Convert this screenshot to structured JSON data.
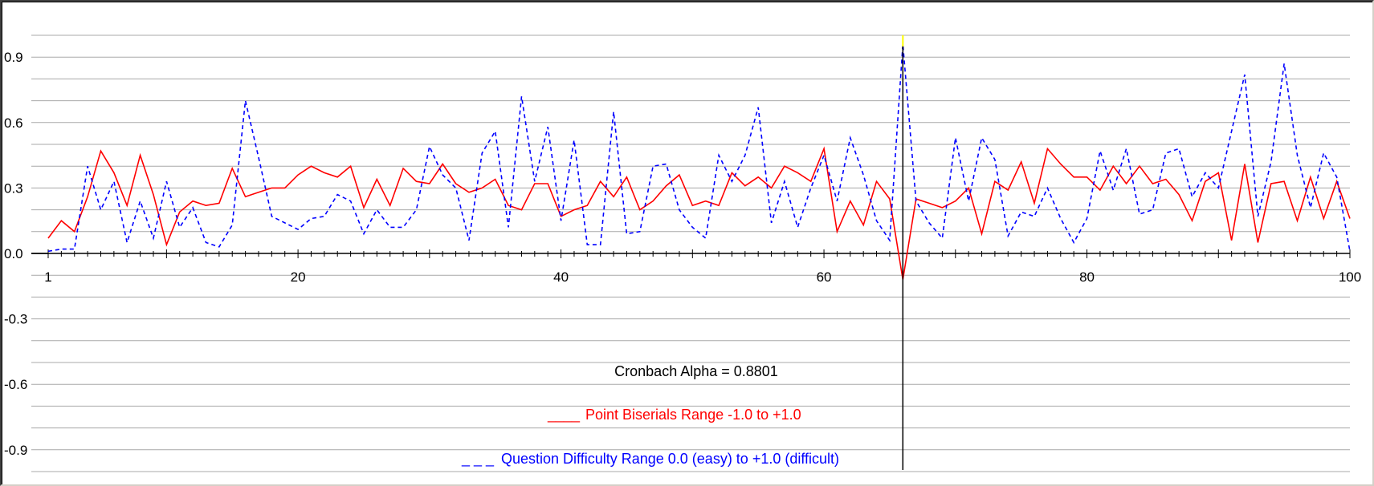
{
  "chart_data": {
    "type": "line",
    "title": "",
    "xlabel": "",
    "ylabel": "",
    "xlim": [
      1,
      100
    ],
    "ylim": [
      -1.0,
      1.0
    ],
    "x_ticks": [
      "1",
      "20",
      "40",
      "60",
      "80",
      "100"
    ],
    "y_ticks": [
      "0.9",
      "0.6",
      "0.3",
      "0.0",
      "-0.3",
      "-0.6",
      "-0.9"
    ],
    "grid": true,
    "cursor_x": 66,
    "annotations": {
      "cronbach": "Cronbach Alpha = 0.8801",
      "series1_marker": "____",
      "series1_legend": "Point Biserials Range -1.0 to +1.0",
      "series2_marker": "_ _ _",
      "series2_legend": "Question Difficulty Range 0.0 (easy) to +1.0 (difficult)"
    },
    "series": [
      {
        "name": "Point Biserials Range -1.0 to +1.0",
        "color": "#ff0000",
        "style": "solid",
        "values": [
          0.07,
          0.15,
          0.1,
          0.26,
          0.47,
          0.37,
          0.22,
          0.45,
          0.27,
          0.04,
          0.19,
          0.24,
          0.22,
          0.23,
          0.39,
          0.26,
          0.28,
          0.3,
          0.3,
          0.36,
          0.4,
          0.37,
          0.35,
          0.4,
          0.21,
          0.34,
          0.22,
          0.39,
          0.33,
          0.32,
          0.41,
          0.32,
          0.28,
          0.3,
          0.34,
          0.22,
          0.2,
          0.32,
          0.32,
          0.17,
          0.2,
          0.22,
          0.33,
          0.26,
          0.35,
          0.2,
          0.24,
          0.31,
          0.36,
          0.22,
          0.24,
          0.22,
          0.37,
          0.31,
          0.35,
          0.3,
          0.4,
          0.37,
          0.33,
          0.48,
          0.1,
          0.24,
          0.13,
          0.33,
          0.25,
          -0.12,
          0.25,
          0.23,
          0.21,
          0.24,
          0.3,
          0.09,
          0.33,
          0.29,
          0.42,
          0.23,
          0.48,
          0.41,
          0.35,
          0.35,
          0.29,
          0.4,
          0.32,
          0.4,
          0.32,
          0.34,
          0.27,
          0.15,
          0.33,
          0.37,
          0.06,
          0.41,
          0.05,
          0.32,
          0.33,
          0.15,
          0.35,
          0.16,
          0.33,
          0.16
        ]
      },
      {
        "name": "Question Difficulty Range 0.0 (easy) to +1.0 (difficult)",
        "color": "#0000ff",
        "style": "dashed",
        "values": [
          0.01,
          0.02,
          0.02,
          0.4,
          0.2,
          0.33,
          0.05,
          0.24,
          0.07,
          0.33,
          0.12,
          0.21,
          0.05,
          0.03,
          0.13,
          0.7,
          0.44,
          0.17,
          0.14,
          0.11,
          0.16,
          0.17,
          0.27,
          0.24,
          0.09,
          0.2,
          0.12,
          0.12,
          0.2,
          0.49,
          0.36,
          0.3,
          0.06,
          0.46,
          0.56,
          0.12,
          0.72,
          0.33,
          0.58,
          0.15,
          0.52,
          0.04,
          0.04,
          0.65,
          0.09,
          0.1,
          0.4,
          0.41,
          0.2,
          0.12,
          0.07,
          0.45,
          0.33,
          0.45,
          0.67,
          0.14,
          0.33,
          0.12,
          0.3,
          0.45,
          0.24,
          0.53,
          0.36,
          0.15,
          0.06,
          0.96,
          0.24,
          0.14,
          0.07,
          0.53,
          0.24,
          0.53,
          0.43,
          0.08,
          0.19,
          0.17,
          0.3,
          0.16,
          0.05,
          0.16,
          0.47,
          0.29,
          0.48,
          0.18,
          0.2,
          0.46,
          0.48,
          0.26,
          0.37,
          0.3,
          0.56,
          0.82,
          0.17,
          0.42,
          0.87,
          0.45,
          0.21,
          0.46,
          0.35,
          0.01
        ]
      }
    ]
  }
}
